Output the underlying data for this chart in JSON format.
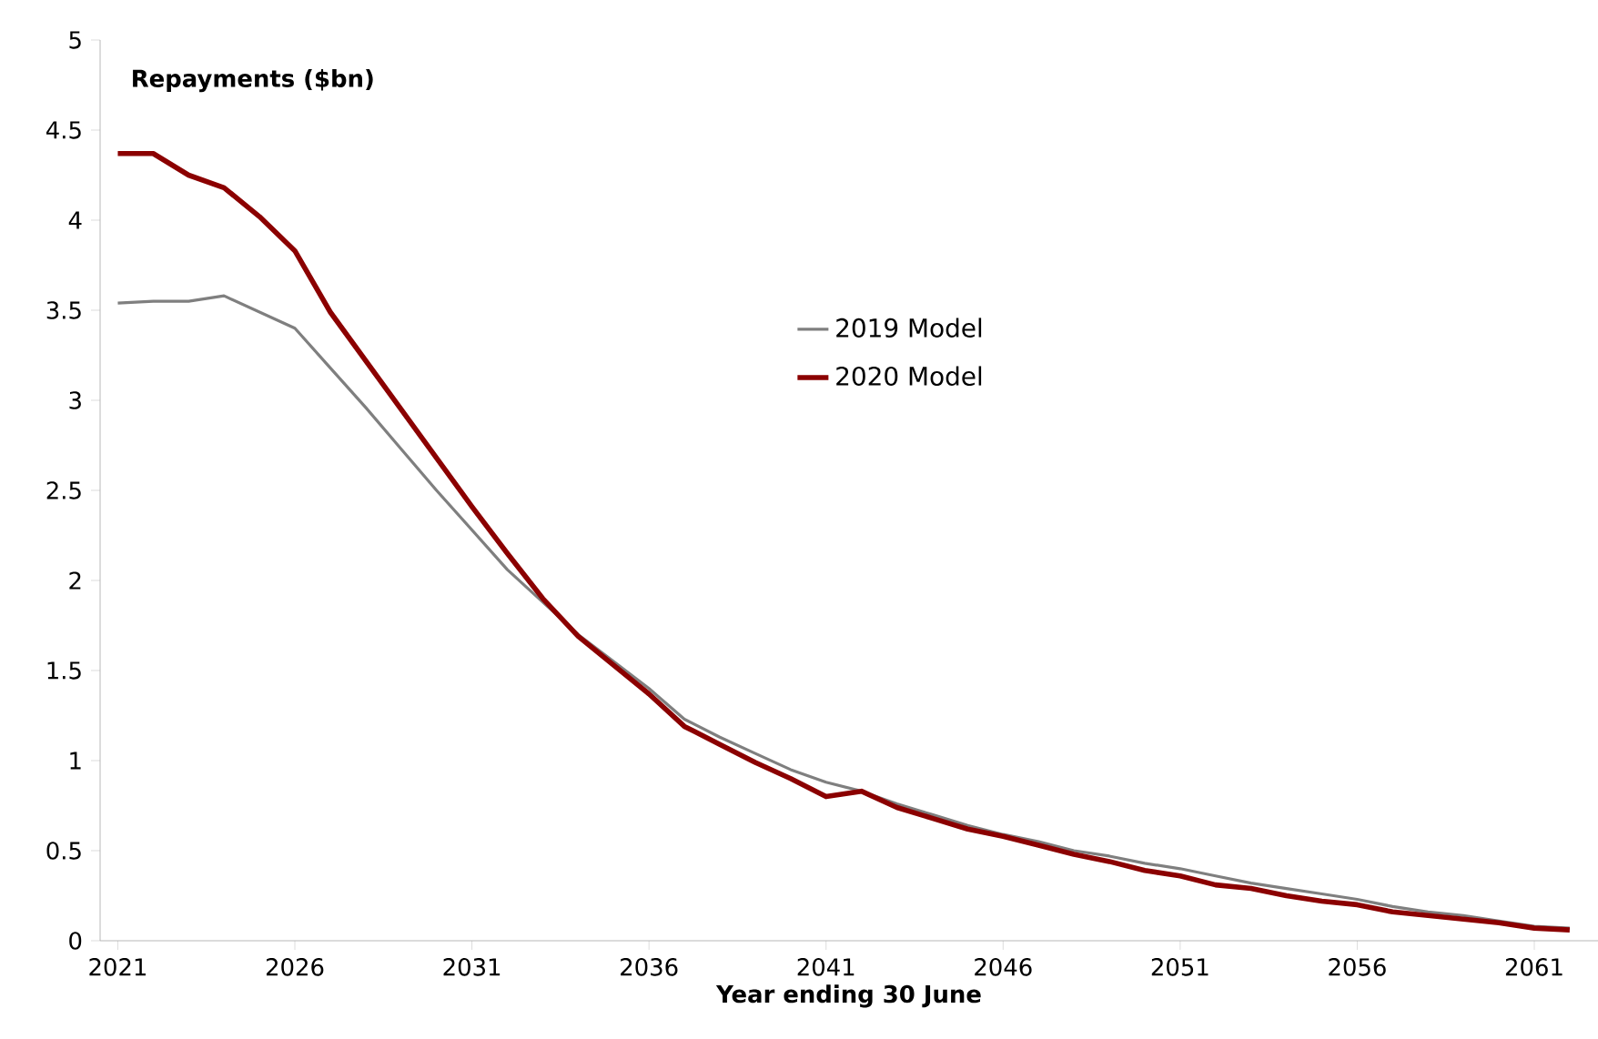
{
  "chart_data": {
    "type": "line",
    "xlabel": "Year ending 30 June",
    "ylabel": "Repayments ($bn)",
    "x": [
      2021,
      2022,
      2023,
      2024,
      2025,
      2026,
      2027,
      2028,
      2029,
      2030,
      2031,
      2032,
      2033,
      2034,
      2035,
      2036,
      2037,
      2038,
      2039,
      2040,
      2041,
      2042,
      2043,
      2044,
      2045,
      2046,
      2047,
      2048,
      2049,
      2050,
      2051,
      2052,
      2053,
      2054,
      2055,
      2056,
      2057,
      2058,
      2059,
      2060,
      2061,
      2062
    ],
    "series": [
      {
        "name": "2019 Model",
        "color": "#7f7f7f",
        "values": [
          3.54,
          3.55,
          3.55,
          3.58,
          3.49,
          3.4,
          3.18,
          2.96,
          2.73,
          2.5,
          2.28,
          2.06,
          1.88,
          1.7,
          1.55,
          1.4,
          1.23,
          1.13,
          1.04,
          0.95,
          0.88,
          0.83,
          0.76,
          0.7,
          0.64,
          0.59,
          0.55,
          0.5,
          0.47,
          0.43,
          0.4,
          0.36,
          0.32,
          0.29,
          0.26,
          0.23,
          0.19,
          0.16,
          0.14,
          0.11,
          0.08,
          0.07
        ]
      },
      {
        "name": "2020 Model",
        "color": "#8b0000",
        "values": [
          4.37,
          4.37,
          4.25,
          4.18,
          4.02,
          3.83,
          3.49,
          3.22,
          2.95,
          2.68,
          2.41,
          2.15,
          1.9,
          1.69,
          1.53,
          1.37,
          1.19,
          1.09,
          0.99,
          0.9,
          0.8,
          0.83,
          0.74,
          0.68,
          0.62,
          0.58,
          0.53,
          0.48,
          0.44,
          0.39,
          0.36,
          0.31,
          0.29,
          0.25,
          0.22,
          0.2,
          0.16,
          0.14,
          0.12,
          0.1,
          0.07,
          0.06
        ]
      }
    ],
    "xlim": [
      2020.5,
      2062.8
    ],
    "ylim": [
      0,
      5
    ],
    "xticks": [
      2021,
      2026,
      2031,
      2036,
      2041,
      2046,
      2051,
      2056,
      2061
    ],
    "yticks": [
      0,
      0.5,
      1,
      1.5,
      2,
      2.5,
      3,
      3.5,
      4,
      4.5,
      5
    ],
    "legend": "top"
  }
}
